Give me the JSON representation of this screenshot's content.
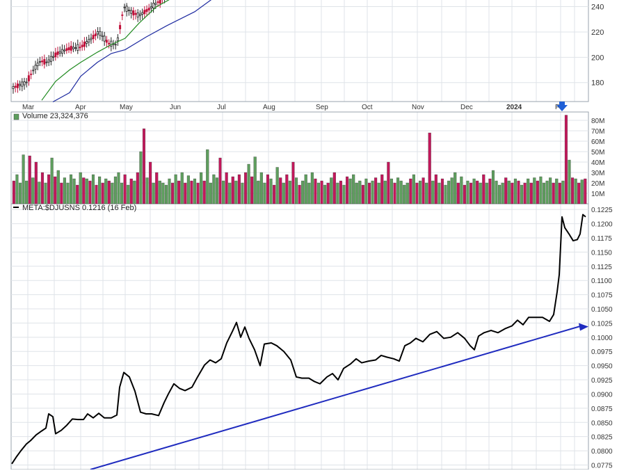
{
  "colors": {
    "background": "#ffffff",
    "grid": "#dfe3e8",
    "panel_border": "#9aa3ad",
    "price_candle": "#222222",
    "price_candle_down": "#c0103a",
    "ma_short": "#1f8a1f",
    "ma_long": "#1d2aa0",
    "volume_up": "#5e9e5e",
    "volume_down": "#c2185b",
    "ratio_line": "#000000",
    "trendline": "#1f2bbf",
    "marker_arrow": "#1f5fd6"
  },
  "chart_data": [
    {
      "type": "candlestick",
      "panel": "price",
      "x_tick_labels": [
        "Mar",
        "Apr",
        "May",
        "Jun",
        "Jul",
        "Aug",
        "Sep",
        "Oct",
        "Nov",
        "Dec",
        "2024",
        "F"
      ],
      "y_tick_labels": [
        "240",
        "220",
        "200",
        "180"
      ],
      "ylim": [
        165,
        248
      ],
      "close": [
        {
          "x": "Mar",
          "y": 176
        },
        {
          "x": "Mar",
          "y": 180
        },
        {
          "x": "Mar",
          "y": 197
        },
        {
          "x": "Apr",
          "y": 203
        },
        {
          "x": "Apr",
          "y": 208
        },
        {
          "x": "Apr",
          "y": 220
        },
        {
          "x": "May",
          "y": 211
        },
        {
          "x": "May",
          "y": 240
        },
        {
          "x": "May",
          "y": 233
        },
        {
          "x": "Jun",
          "y": 245
        }
      ],
      "ma_short": [
        {
          "x": "Mar",
          "y": 166
        },
        {
          "x": "Apr",
          "y": 196
        },
        {
          "x": "May",
          "y": 215
        },
        {
          "x": "Jun",
          "y": 244
        }
      ],
      "ma_long": [
        {
          "x": "Mar",
          "y": 165
        },
        {
          "x": "Apr",
          "y": 185
        },
        {
          "x": "May",
          "y": 206
        },
        {
          "x": "Jun",
          "y": 230
        }
      ]
    },
    {
      "type": "bar",
      "panel": "volume",
      "label": "Volume 23,324,376",
      "y_tick_labels": [
        "80M",
        "70M",
        "60M",
        "50M",
        "40M",
        "30M",
        "20M",
        "10M"
      ],
      "ylim": [
        0,
        88
      ],
      "highlight": {
        "x": "F",
        "y": 85
      },
      "values_million": [
        22,
        28,
        20,
        47,
        22,
        46,
        25,
        40,
        21,
        30,
        20,
        28,
        44,
        26,
        32,
        20,
        25,
        20,
        28,
        24,
        18,
        30,
        25,
        24,
        22,
        28,
        18,
        26,
        20,
        24,
        22,
        20,
        26,
        30,
        20,
        28,
        18,
        24,
        22,
        30,
        50,
        72,
        25,
        40,
        20,
        30,
        22,
        20,
        18,
        24,
        20,
        28,
        22,
        30,
        20,
        27,
        22,
        24,
        20,
        30,
        22,
        52,
        20,
        28,
        25,
        44,
        22,
        30,
        20,
        26,
        22,
        28,
        20,
        30,
        38,
        26,
        45,
        22,
        30,
        20,
        28,
        24,
        18,
        35,
        25,
        20,
        28,
        22,
        40,
        25,
        18,
        22,
        28,
        20,
        30,
        24,
        20,
        22,
        18,
        20,
        25,
        30,
        20,
        22,
        18,
        26,
        24,
        28,
        20,
        22,
        18,
        24,
        20,
        22,
        25,
        20,
        28,
        22,
        40,
        24,
        20,
        25,
        22,
        18,
        20,
        24,
        28,
        20,
        22,
        25,
        20,
        68,
        22,
        28,
        20,
        24,
        18,
        22,
        25,
        30,
        20,
        26,
        18,
        22,
        20,
        24,
        22,
        20,
        28,
        20,
        24,
        32,
        22,
        18,
        20,
        25,
        22,
        20,
        24,
        22,
        18,
        20,
        24,
        20,
        25,
        22,
        26,
        20,
        22,
        25,
        20,
        24,
        20,
        22,
        85,
        42,
        25,
        24,
        20,
        23,
        24
      ],
      "up_pattern": "alternating"
    },
    {
      "type": "line",
      "panel": "ratio",
      "legend": "META:$DJUSNS 0.1216 (16 Feb)",
      "y_tick_labels": [
        "0.1225",
        "0.1200",
        "0.1175",
        "0.1150",
        "0.1125",
        "0.1100",
        "0.1075",
        "0.1050",
        "0.1025",
        "0.1000",
        "0.0975",
        "0.0950",
        "0.0925",
        "0.0900",
        "0.0875",
        "0.0850",
        "0.0825",
        "0.0800",
        "0.0775"
      ],
      "ylim": [
        0.0767,
        0.1235
      ],
      "series": [
        {
          "values": [
            {
              "x": "Mar",
              "y": 0.0777
            },
            {
              "x": "Mar",
              "y": 0.079
            },
            {
              "x": "Mar",
              "y": 0.081
            },
            {
              "x": "Mar",
              "y": 0.0825
            },
            {
              "x": "Mar",
              "y": 0.0862
            },
            {
              "x": "Apr",
              "y": 0.083
            },
            {
              "x": "Apr",
              "y": 0.0855
            },
            {
              "x": "Apr",
              "y": 0.0862
            },
            {
              "x": "May",
              "y": 0.0855
            },
            {
              "x": "May",
              "y": 0.0938
            },
            {
              "x": "May",
              "y": 0.0895
            },
            {
              "x": "May",
              "y": 0.0864
            },
            {
              "x": "Jun",
              "y": 0.0918
            },
            {
              "x": "Jun",
              "y": 0.0905
            },
            {
              "x": "Jun",
              "y": 0.0955
            },
            {
              "x": "Jul",
              "y": 0.0987
            },
            {
              "x": "Jul",
              "y": 0.1026
            },
            {
              "x": "Jul",
              "y": 0.0998
            },
            {
              "x": "Aug",
              "y": 0.099
            },
            {
              "x": "Aug",
              "y": 0.0968
            },
            {
              "x": "Aug",
              "y": 0.0926
            },
            {
              "x": "Sep",
              "y": 0.0918
            },
            {
              "x": "Sep",
              "y": 0.094
            },
            {
              "x": "Oct",
              "y": 0.095
            },
            {
              "x": "Oct",
              "y": 0.096
            },
            {
              "x": "Nov",
              "y": 0.0992
            },
            {
              "x": "Nov",
              "y": 0.1008
            },
            {
              "x": "Dec",
              "y": 0.1004
            },
            {
              "x": "Dec",
              "y": 0.1015
            },
            {
              "x": "2024",
              "y": 0.103
            },
            {
              "x": "2024",
              "y": 0.104
            },
            {
              "x": "F",
              "y": 0.1212
            },
            {
              "x": "F",
              "y": 0.1165
            },
            {
              "x": "F",
              "y": 0.1216
            }
          ]
        }
      ],
      "trendline": [
        {
          "x": "Mar",
          "y": 0.0762
        },
        {
          "x": "F",
          "y": 0.102
        }
      ]
    }
  ]
}
